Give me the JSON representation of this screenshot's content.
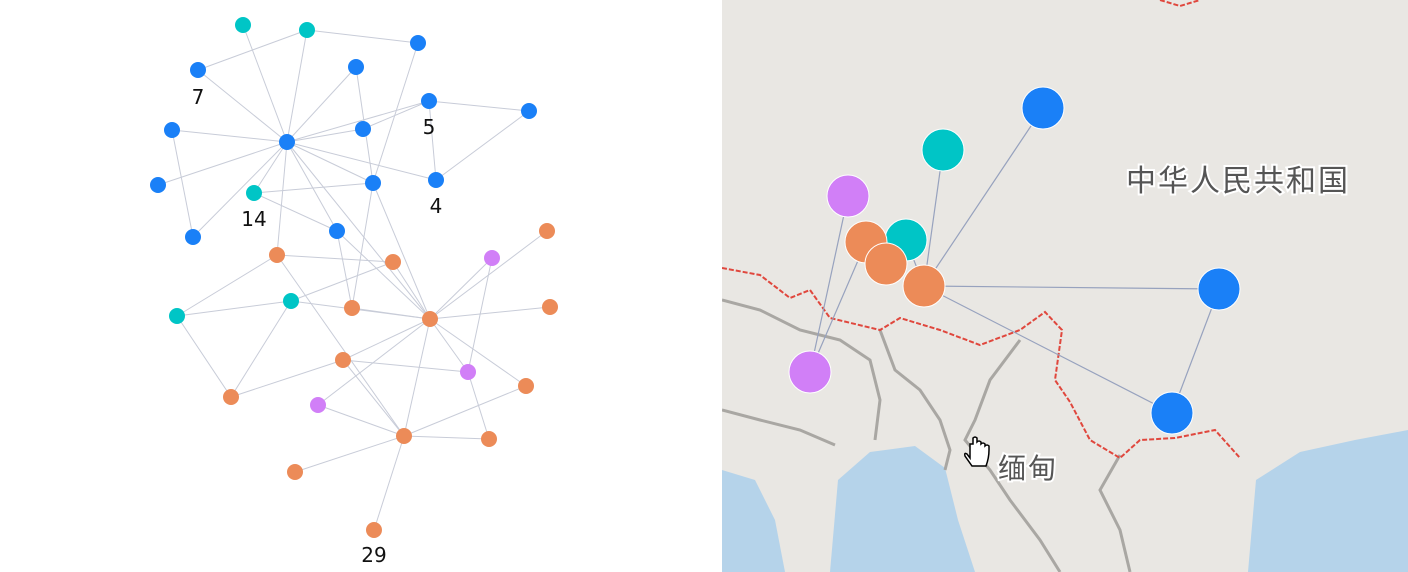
{
  "graph": {
    "node_labels": [
      "7",
      "5",
      "4",
      "14",
      "29"
    ]
  },
  "map": {
    "place_labels": [
      "中华人民共和国",
      "缅甸"
    ]
  }
}
